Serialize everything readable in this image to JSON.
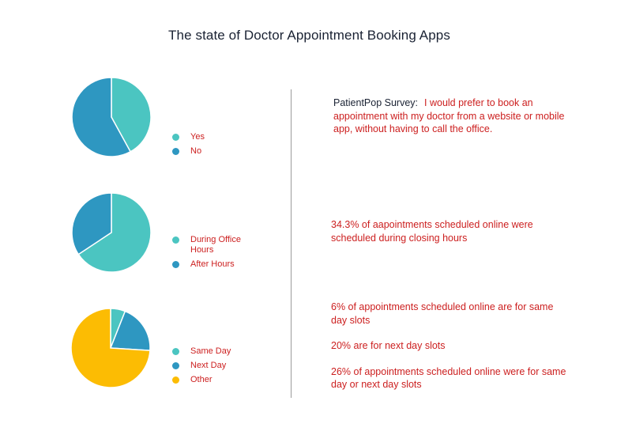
{
  "title": "The state of Doctor Appointment Booking Apps",
  "chart_data": [
    {
      "type": "pie",
      "labels": [
        "Yes",
        "No"
      ],
      "values": [
        42,
        58
      ],
      "colors": [
        "#4bc5c1",
        "#2e97c1"
      ]
    },
    {
      "type": "pie",
      "labels": [
        "During Office Hours",
        "After Hours"
      ],
      "values": [
        65.7,
        34.3
      ],
      "colors": [
        "#4bc5c1",
        "#2e97c1"
      ]
    },
    {
      "type": "pie",
      "labels": [
        "Same Day",
        "Next Day",
        "Other"
      ],
      "values": [
        6,
        20,
        74
      ],
      "colors": [
        "#4bc5c1",
        "#2e97c1",
        "#fcbc03"
      ]
    }
  ],
  "notes": {
    "survey_source": "PatientPop Survey:",
    "survey_text": "I would prefer to book an appointment with my doctor from a website or mobile app, without having to call the office.",
    "after_hours": "34.3% of aapointments scheduled online were scheduled during closing hours",
    "same_day": "6% of appointments scheduled online are for same day slots",
    "next_day": "20% are for next day slots",
    "combined": "26% of appointments scheduled online were for same day or next day slots"
  }
}
